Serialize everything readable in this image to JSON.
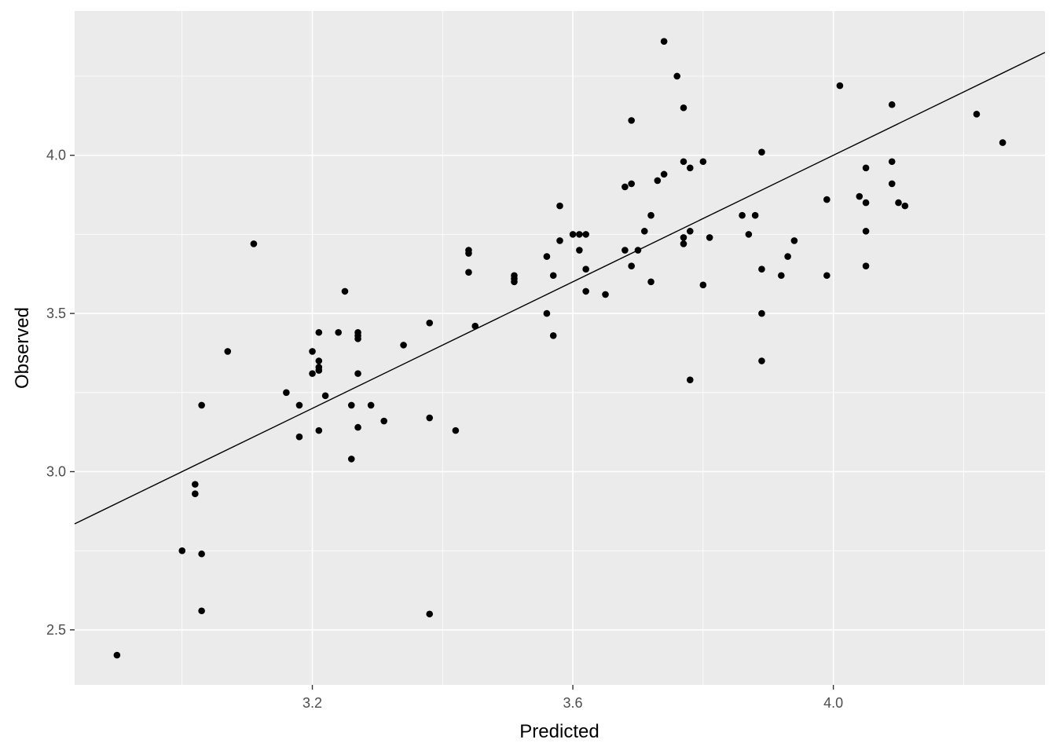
{
  "chart_data": {
    "type": "scatter",
    "title": "",
    "xlabel": "Predicted",
    "ylabel": "Observed",
    "xlim": [
      2.835,
      4.325
    ],
    "ylim": [
      2.326,
      4.456
    ],
    "x_ticks": [
      3.2,
      3.6,
      4.0
    ],
    "x_tick_labels": [
      "3.2",
      "3.6",
      "4.0"
    ],
    "y_ticks": [
      2.5,
      3.0,
      3.5,
      4.0
    ],
    "y_tick_labels": [
      "2.5",
      "3.0",
      "3.5",
      "4.0"
    ],
    "grid": true,
    "background_color": "#ebebeb",
    "grid_color": "#ffffff",
    "point_color": "#000000",
    "reference_line": {
      "type": "identity",
      "x": [
        2.835,
        4.325
      ],
      "y": [
        2.835,
        4.325
      ]
    },
    "points": [
      [
        2.9,
        2.42
      ],
      [
        3.0,
        2.75
      ],
      [
        3.02,
        2.96
      ],
      [
        3.02,
        2.93
      ],
      [
        3.03,
        3.21
      ],
      [
        3.03,
        2.74
      ],
      [
        3.03,
        2.56
      ],
      [
        3.07,
        3.38
      ],
      [
        3.11,
        3.72
      ],
      [
        3.16,
        3.25
      ],
      [
        3.18,
        3.21
      ],
      [
        3.18,
        3.11
      ],
      [
        3.2,
        3.38
      ],
      [
        3.2,
        3.31
      ],
      [
        3.21,
        3.35
      ],
      [
        3.21,
        3.33
      ],
      [
        3.21,
        3.32
      ],
      [
        3.21,
        3.13
      ],
      [
        3.21,
        3.44
      ],
      [
        3.22,
        3.24
      ],
      [
        3.24,
        3.44
      ],
      [
        3.25,
        3.57
      ],
      [
        3.26,
        3.04
      ],
      [
        3.26,
        3.21
      ],
      [
        3.27,
        3.31
      ],
      [
        3.27,
        3.44
      ],
      [
        3.27,
        3.43
      ],
      [
        3.27,
        3.42
      ],
      [
        3.27,
        3.14
      ],
      [
        3.29,
        3.21
      ],
      [
        3.31,
        3.16
      ],
      [
        3.34,
        3.4
      ],
      [
        3.38,
        3.47
      ],
      [
        3.38,
        3.17
      ],
      [
        3.38,
        2.55
      ],
      [
        3.42,
        3.13
      ],
      [
        3.44,
        3.7
      ],
      [
        3.44,
        3.69
      ],
      [
        3.44,
        3.63
      ],
      [
        3.45,
        3.46
      ],
      [
        3.51,
        3.62
      ],
      [
        3.51,
        3.61
      ],
      [
        3.51,
        3.6
      ],
      [
        3.56,
        3.68
      ],
      [
        3.56,
        3.5
      ],
      [
        3.57,
        3.43
      ],
      [
        3.57,
        3.62
      ],
      [
        3.58,
        3.73
      ],
      [
        3.58,
        3.84
      ],
      [
        3.6,
        3.75
      ],
      [
        3.61,
        3.75
      ],
      [
        3.61,
        3.7
      ],
      [
        3.62,
        3.75
      ],
      [
        3.62,
        3.64
      ],
      [
        3.62,
        3.57
      ],
      [
        3.65,
        3.56
      ],
      [
        3.68,
        3.9
      ],
      [
        3.68,
        3.7
      ],
      [
        3.69,
        3.91
      ],
      [
        3.69,
        4.11
      ],
      [
        3.69,
        3.65
      ],
      [
        3.7,
        3.7
      ],
      [
        3.71,
        3.76
      ],
      [
        3.72,
        3.81
      ],
      [
        3.72,
        3.6
      ],
      [
        3.73,
        3.92
      ],
      [
        3.74,
        4.36
      ],
      [
        3.74,
        3.94
      ],
      [
        3.76,
        4.25
      ],
      [
        3.77,
        3.98
      ],
      [
        3.77,
        3.74
      ],
      [
        3.77,
        3.72
      ],
      [
        3.77,
        4.15
      ],
      [
        3.78,
        3.96
      ],
      [
        3.78,
        3.76
      ],
      [
        3.78,
        3.29
      ],
      [
        3.8,
        3.98
      ],
      [
        3.8,
        3.59
      ],
      [
        3.81,
        3.74
      ],
      [
        3.86,
        3.81
      ],
      [
        3.87,
        3.75
      ],
      [
        3.88,
        3.81
      ],
      [
        3.89,
        3.64
      ],
      [
        3.89,
        3.5
      ],
      [
        3.89,
        3.35
      ],
      [
        3.89,
        4.01
      ],
      [
        3.92,
        3.62
      ],
      [
        3.93,
        3.68
      ],
      [
        3.94,
        3.73
      ],
      [
        3.99,
        3.86
      ],
      [
        3.99,
        3.62
      ],
      [
        4.01,
        4.22
      ],
      [
        4.04,
        3.87
      ],
      [
        4.05,
        3.96
      ],
      [
        4.05,
        3.85
      ],
      [
        4.05,
        3.76
      ],
      [
        4.05,
        3.65
      ],
      [
        4.09,
        3.98
      ],
      [
        4.09,
        3.91
      ],
      [
        4.09,
        4.16
      ],
      [
        4.1,
        3.85
      ],
      [
        4.11,
        3.84
      ],
      [
        4.22,
        4.13
      ],
      [
        4.26,
        4.04
      ]
    ]
  }
}
